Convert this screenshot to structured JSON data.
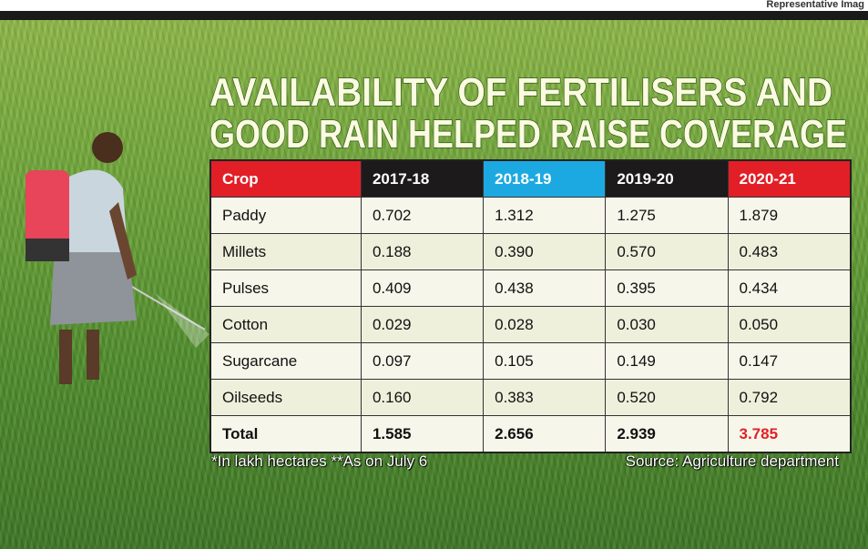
{
  "header": {
    "credit": "Representative Imag"
  },
  "title": [
    "AVAILABILITY OF FERTILISERS AND",
    "GOOD RAIN HELPED RAISE COVERAGE"
  ],
  "table": {
    "columns": [
      "Crop",
      "2017-18",
      "2018-19",
      "2019-20",
      "2020-21"
    ],
    "rows": [
      [
        "Paddy",
        "0.702",
        "1.312",
        "1.275",
        "1.879"
      ],
      [
        "Millets",
        "0.188",
        "0.390",
        "0.570",
        "0.483"
      ],
      [
        "Pulses",
        "0.409",
        "0.438",
        "0.395",
        "0.434"
      ],
      [
        "Cotton",
        "0.029",
        "0.028",
        "0.030",
        "0.050"
      ],
      [
        "Sugarcane",
        "0.097",
        "0.105",
        "0.149",
        "0.147"
      ],
      [
        "Oilseeds",
        "0.160",
        "0.383",
        "0.520",
        "0.792"
      ],
      [
        "Total",
        "1.585",
        "2.656",
        "2.939",
        "3.785"
      ]
    ]
  },
  "footnotes": {
    "note": "*In lakh hectares **As on July 6",
    "source": "Source: Agriculture department"
  }
}
